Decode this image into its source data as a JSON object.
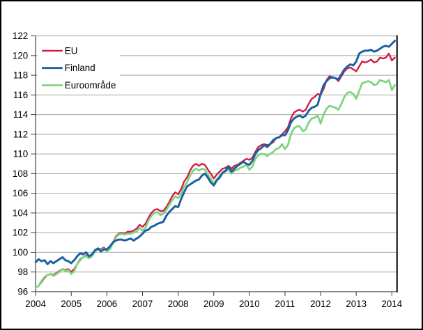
{
  "chart": {
    "background_color": "#ffffff",
    "grid_color": "#a3a3a3",
    "axis_color": "#3a3a3a",
    "frame_right_color": "#000000",
    "text_color": "#000000",
    "legend": [
      {
        "label": "EU",
        "color": "#d01c48"
      },
      {
        "label": "Finland",
        "color": "#1a60a2"
      },
      {
        "label": "Euroområde",
        "color": "#7ed47f"
      }
    ]
  },
  "chart_data": {
    "type": "line",
    "title": "",
    "xlabel": "",
    "ylabel": "",
    "x_unit": "month",
    "x_start": "2004-01",
    "x_end": "2014-02",
    "xtick_labels": [
      "2004",
      "2005",
      "2006",
      "2007",
      "2008",
      "2009",
      "2010",
      "2011",
      "2012",
      "2013",
      "2014"
    ],
    "ytick_labels": [
      "96",
      "98",
      "100",
      "102",
      "104",
      "106",
      "108",
      "110",
      "112",
      "114",
      "116",
      "118",
      "120",
      "122"
    ],
    "ylim": [
      96,
      122
    ],
    "ytick_step": 2,
    "grid": true,
    "legend_position": "top-left-inside",
    "series": [
      {
        "name": "EU",
        "color": "#d01c48",
        "line_width": 2.4,
        "values": [
          96.4,
          96.6,
          97.0,
          97.4,
          97.7,
          97.8,
          97.7,
          97.9,
          98.1,
          98.3,
          98.2,
          98.3,
          98.0,
          98.3,
          98.8,
          99.3,
          99.5,
          99.7,
          99.5,
          99.7,
          100.2,
          100.4,
          100.3,
          100.5,
          100.2,
          100.5,
          101.0,
          101.6,
          101.9,
          102.0,
          101.9,
          102.1,
          102.1,
          102.2,
          102.4,
          102.8,
          102.6,
          102.9,
          103.5,
          104.0,
          104.3,
          104.4,
          104.2,
          104.2,
          104.6,
          105.1,
          105.7,
          106.1,
          105.9,
          106.4,
          107.2,
          107.6,
          108.3,
          108.8,
          109.0,
          108.8,
          109.0,
          108.9,
          108.4,
          108.0,
          107.5,
          107.9,
          108.2,
          108.5,
          108.6,
          108.8,
          108.5,
          108.8,
          108.9,
          109.1,
          109.3,
          109.5,
          109.4,
          109.6,
          110.2,
          110.7,
          110.9,
          111.0,
          110.9,
          111.0,
          111.2,
          111.6,
          111.7,
          112.0,
          112.3,
          112.7,
          113.6,
          114.2,
          114.4,
          114.5,
          114.3,
          114.5,
          115.1,
          115.6,
          115.8,
          116.1,
          116.0,
          116.6,
          117.5,
          117.9,
          117.8,
          117.7,
          117.4,
          117.9,
          118.4,
          118.7,
          118.8,
          118.6,
          118.4,
          118.9,
          119.4,
          119.3,
          119.4,
          119.6,
          119.3,
          119.4,
          119.8,
          119.7,
          119.8,
          120.2,
          119.5,
          119.8
        ]
      },
      {
        "name": "Euroområde",
        "color": "#7ed47f",
        "line_width": 2.8,
        "values": [
          96.4,
          96.6,
          97.1,
          97.5,
          97.7,
          97.8,
          97.6,
          97.8,
          98.0,
          98.3,
          98.1,
          98.2,
          97.8,
          98.1,
          98.8,
          99.2,
          99.5,
          99.6,
          99.4,
          99.6,
          100.1,
          100.3,
          100.2,
          100.4,
          100.1,
          100.3,
          100.9,
          101.5,
          101.8,
          101.9,
          101.8,
          101.9,
          101.9,
          102.0,
          102.1,
          102.5,
          102.2,
          102.5,
          103.2,
          103.7,
          104.0,
          104.1,
          103.8,
          103.9,
          104.3,
          104.8,
          105.3,
          105.7,
          105.5,
          105.9,
          106.7,
          107.1,
          107.8,
          108.3,
          108.5,
          108.3,
          108.5,
          108.4,
          107.9,
          107.5,
          107.0,
          107.4,
          107.8,
          108.1,
          108.2,
          108.4,
          108.0,
          108.3,
          108.4,
          108.6,
          108.7,
          108.9,
          108.4,
          108.7,
          109.5,
          109.9,
          110.0,
          110.0,
          109.8,
          110.0,
          110.2,
          110.5,
          110.6,
          111.0,
          110.5,
          110.9,
          112.0,
          112.6,
          112.8,
          112.8,
          112.3,
          112.5,
          113.2,
          113.6,
          113.7,
          113.9,
          113.1,
          114.0,
          114.6,
          114.9,
          114.8,
          114.7,
          114.5,
          115.1,
          115.8,
          116.2,
          116.3,
          116.1,
          115.6,
          116.4,
          117.2,
          117.3,
          117.4,
          117.3,
          117.0,
          117.1,
          117.5,
          117.4,
          117.3,
          117.5,
          116.5,
          117.0
        ]
      },
      {
        "name": "Finland",
        "color": "#1a60a2",
        "line_width": 3.0,
        "values": [
          99.0,
          99.3,
          99.1,
          99.2,
          98.8,
          99.1,
          98.9,
          99.1,
          99.3,
          99.5,
          99.2,
          99.1,
          98.9,
          99.2,
          99.6,
          99.9,
          99.8,
          100.0,
          99.6,
          99.8,
          100.2,
          100.4,
          100.1,
          100.3,
          100.3,
          100.6,
          101.0,
          101.2,
          101.3,
          101.3,
          101.2,
          101.3,
          101.4,
          101.2,
          101.4,
          101.6,
          101.9,
          102.2,
          102.3,
          102.6,
          102.7,
          102.9,
          103.0,
          103.1,
          103.7,
          104.1,
          104.4,
          104.7,
          104.6,
          105.4,
          106.1,
          106.7,
          106.9,
          107.1,
          107.3,
          107.4,
          107.8,
          108.0,
          107.6,
          107.1,
          106.8,
          107.3,
          107.6,
          108.1,
          108.3,
          108.7,
          108.2,
          108.5,
          108.8,
          109.0,
          109.2,
          109.0,
          108.9,
          109.3,
          110.0,
          110.4,
          110.6,
          110.9,
          110.7,
          111.0,
          111.4,
          111.6,
          111.7,
          111.9,
          111.9,
          112.4,
          113.2,
          113.6,
          113.8,
          113.9,
          113.7,
          113.9,
          114.4,
          114.7,
          114.8,
          115.0,
          116.1,
          117.0,
          117.4,
          117.7,
          117.8,
          117.7,
          117.6,
          118.1,
          118.6,
          118.9,
          119.1,
          119.0,
          119.4,
          120.2,
          120.4,
          120.5,
          120.5,
          120.6,
          120.4,
          120.5,
          120.7,
          120.9,
          121.0,
          120.9,
          121.2,
          121.5
        ]
      }
    ]
  }
}
